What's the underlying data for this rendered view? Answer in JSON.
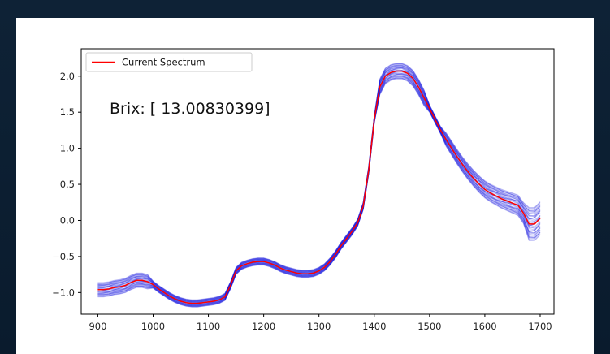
{
  "chart_data": {
    "type": "line",
    "title": "",
    "xlabel": "",
    "ylabel": "",
    "xlim": [
      870,
      1725
    ],
    "ylim": [
      -1.3,
      2.38
    ],
    "x_ticks": [
      900,
      1000,
      1100,
      1200,
      1300,
      1400,
      1500,
      1600,
      1700
    ],
    "y_ticks": [
      -1.0,
      -0.5,
      0.0,
      0.5,
      1.0,
      1.5,
      2.0
    ],
    "grid": false,
    "legend": {
      "placement": "top-left",
      "entries": [
        "Current Spectrum"
      ]
    },
    "annotation": "Brix: [ 13.00830399]",
    "colors": {
      "current": "#ff0000",
      "ensemble": "#1010e0"
    },
    "x": [
      900,
      910,
      920,
      930,
      940,
      950,
      960,
      970,
      980,
      990,
      1000,
      1010,
      1020,
      1030,
      1040,
      1050,
      1060,
      1070,
      1080,
      1090,
      1100,
      1110,
      1120,
      1130,
      1140,
      1150,
      1160,
      1170,
      1180,
      1190,
      1200,
      1210,
      1220,
      1230,
      1240,
      1250,
      1260,
      1270,
      1280,
      1290,
      1300,
      1310,
      1320,
      1330,
      1340,
      1350,
      1360,
      1370,
      1380,
      1390,
      1400,
      1410,
      1420,
      1430,
      1440,
      1450,
      1460,
      1470,
      1480,
      1490,
      1500,
      1510,
      1520,
      1530,
      1540,
      1550,
      1560,
      1570,
      1580,
      1590,
      1600,
      1610,
      1620,
      1630,
      1640,
      1650,
      1660,
      1670,
      1680,
      1690,
      1700
    ],
    "series": [
      {
        "name": "Current Spectrum",
        "values": [
          -0.96,
          -0.96,
          -0.95,
          -0.93,
          -0.92,
          -0.9,
          -0.86,
          -0.83,
          -0.83,
          -0.85,
          -0.89,
          -0.95,
          -1.0,
          -1.05,
          -1.09,
          -1.12,
          -1.14,
          -1.15,
          -1.15,
          -1.14,
          -1.13,
          -1.12,
          -1.1,
          -1.06,
          -0.9,
          -0.7,
          -0.63,
          -0.6,
          -0.58,
          -0.57,
          -0.57,
          -0.59,
          -0.62,
          -0.66,
          -0.69,
          -0.71,
          -0.73,
          -0.74,
          -0.74,
          -0.73,
          -0.7,
          -0.65,
          -0.57,
          -0.47,
          -0.35,
          -0.25,
          -0.15,
          -0.03,
          0.2,
          0.7,
          1.4,
          1.85,
          2.0,
          2.05,
          2.07,
          2.07,
          2.04,
          1.97,
          1.85,
          1.7,
          1.55,
          1.4,
          1.25,
          1.12,
          1.0,
          0.88,
          0.77,
          0.67,
          0.58,
          0.5,
          0.43,
          0.38,
          0.34,
          0.3,
          0.27,
          0.24,
          0.21,
          0.1,
          -0.05,
          -0.05,
          0.03
        ]
      }
    ]
  }
}
